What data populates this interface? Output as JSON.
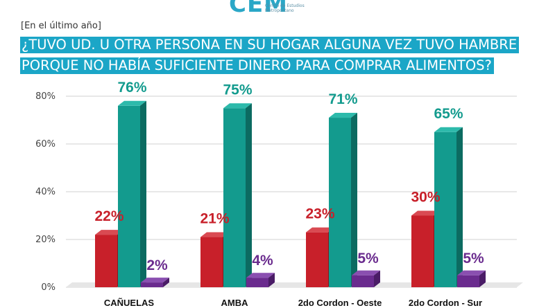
{
  "header": {
    "period_note": "[En el último año]",
    "title_line1": "¿TUVO UD. U OTRA PERSONA EN SU HOGAR ALGUNA VEZ TUVO HAMBRE",
    "title_line2": "PORQUE NO HABÍA SUFICIENTE DINERO PARA COMPRAR ALIMENTOS?"
  },
  "logo": {
    "text": "CEM",
    "subtext": "Centro de Estudios Metropolitano"
  },
  "colors": {
    "series1": "#c8202a",
    "series2": "#139b8e",
    "series3": "#6a2b8e",
    "title_bg": "#1ba6c7"
  },
  "chart_data": {
    "type": "bar",
    "categories": [
      "CAÑUELAS",
      "AMBA",
      "2do Cordon - Oeste",
      "2do Cordon - Sur"
    ],
    "series": [
      {
        "values": [
          22,
          21,
          23,
          30
        ],
        "labels": [
          "22%",
          "21%",
          "23%",
          "30%"
        ]
      },
      {
        "values": [
          76,
          75,
          71,
          65
        ],
        "labels": [
          "76%",
          "75%",
          "71%",
          "65%"
        ]
      },
      {
        "values": [
          2,
          4,
          5,
          5
        ],
        "labels": [
          "2%",
          "4%",
          "5%",
          "5%"
        ]
      }
    ],
    "yticks": [
      "0%",
      "20%",
      "40%",
      "60%",
      "80%"
    ],
    "ylim": [
      0,
      80
    ],
    "grid": true,
    "style": "3d"
  }
}
